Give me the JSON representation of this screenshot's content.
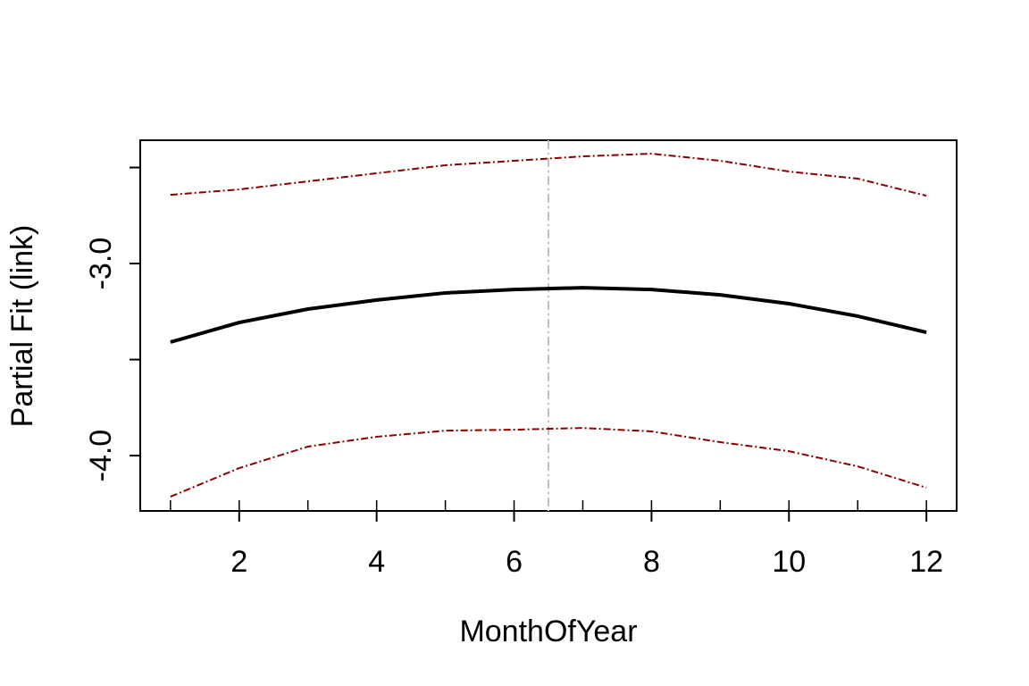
{
  "chart_data": {
    "type": "line",
    "x_label": "MonthOfYear",
    "y_label": "Partial Fit (link)",
    "x": [
      1,
      2,
      3,
      4,
      5,
      6,
      7,
      8,
      9,
      10,
      11,
      12
    ],
    "series": [
      {
        "color": "#000000",
        "line_style": "solid",
        "values": [
          -3.409,
          -3.307,
          -3.237,
          -3.19,
          -3.153,
          -3.135,
          -3.126,
          -3.135,
          -3.163,
          -3.209,
          -3.274,
          -3.358
        ]
      },
      {
        "color": "#8b0000",
        "line_style": "dotdash",
        "values": [
          -2.642,
          -2.614,
          -2.572,
          -2.53,
          -2.488,
          -2.465,
          -2.442,
          -2.428,
          -2.465,
          -2.521,
          -2.558,
          -2.647
        ]
      },
      {
        "color": "#8b0000",
        "line_style": "dotdash",
        "values": [
          -4.214,
          -4.065,
          -3.953,
          -3.902,
          -3.87,
          -3.865,
          -3.856,
          -3.874,
          -3.93,
          -3.977,
          -4.056,
          -4.167
        ]
      }
    ],
    "rug": [
      1,
      2,
      3,
      4,
      5,
      6,
      7,
      8,
      9,
      10,
      11,
      12
    ],
    "vline": {
      "x": 6.5,
      "color": "#bebebe"
    },
    "xlim": [
      0.56,
      12.44
    ],
    "ylim": [
      -4.288,
      -2.358
    ],
    "xticks": [
      {
        "value": 2,
        "label": "2"
      },
      {
        "value": 4,
        "label": "4"
      },
      {
        "value": 6,
        "label": "6"
      },
      {
        "value": 8,
        "label": "8"
      },
      {
        "value": 10,
        "label": "10"
      },
      {
        "value": 12,
        "label": "12"
      }
    ],
    "yticks": [
      {
        "value": -4,
        "label": "-4.0"
      },
      {
        "value": -3.5,
        "label": null
      },
      {
        "value": -3,
        "label": "-3.0"
      },
      {
        "value": -2.5,
        "label": null
      }
    ],
    "grid": false
  }
}
